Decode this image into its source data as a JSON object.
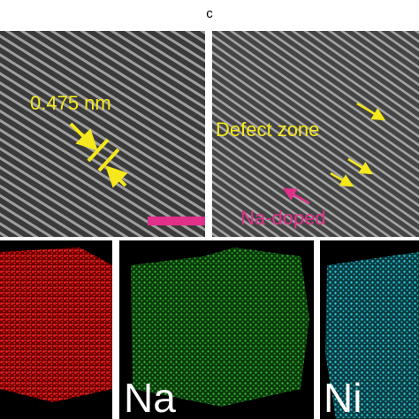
{
  "panel_label": "c",
  "hrtem": {
    "left": {
      "spacing_label": "0.475 nm"
    },
    "right": {
      "defect_label": "Defect zone",
      "dopant_label": "Na-doped"
    }
  },
  "eds_maps": {
    "labels": [
      "Na",
      "Ni"
    ]
  }
}
